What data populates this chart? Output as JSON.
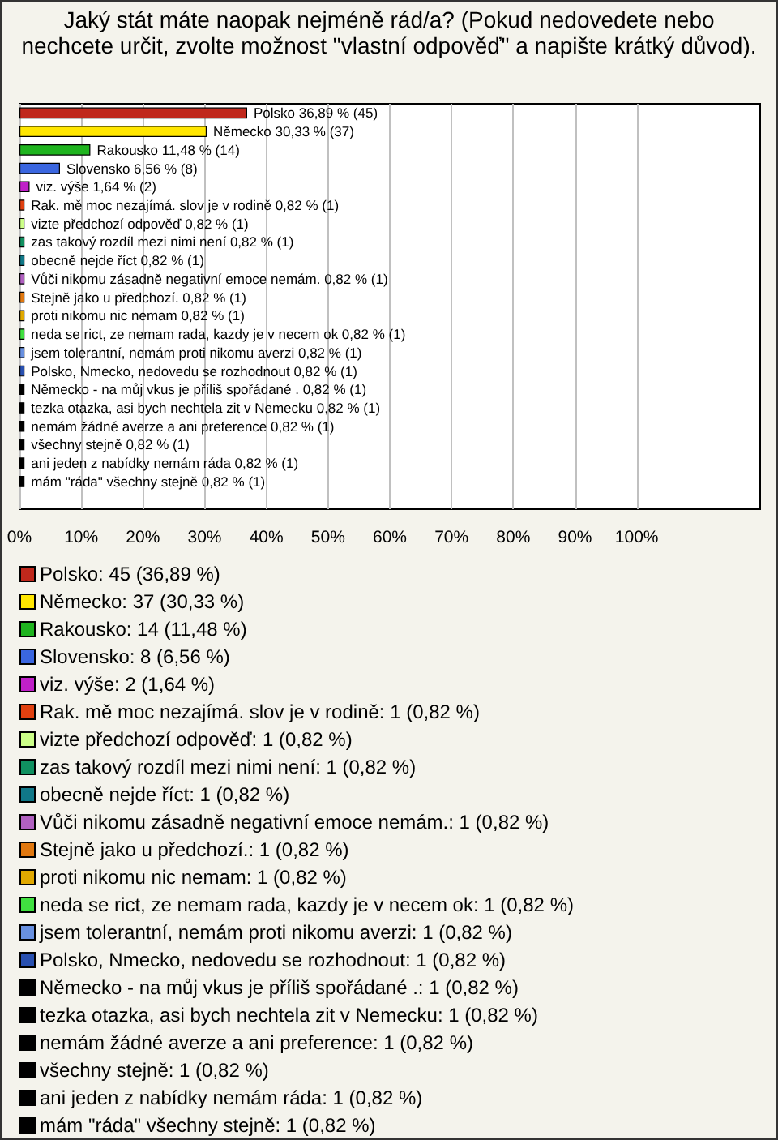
{
  "chart_data": {
    "type": "bar",
    "orientation": "horizontal",
    "stacked": true,
    "title": "Jaký stát máte naopak nejméně rád/a? (Pokud nedovedete nebo nechcete určit, zvolte možnost \"vlastní odpověď\" a napište krátký důvod).",
    "categories": [
      null,
      null,
      null,
      null,
      null,
      null,
      null,
      null,
      null,
      null,
      null,
      null,
      null,
      null,
      null,
      null,
      null,
      null,
      null,
      null,
      null,
      null
    ],
    "xlim": [
      0,
      120
    ],
    "xticks": [
      {
        "value": 0,
        "label": "0%"
      },
      {
        "value": 10,
        "label": "10%"
      },
      {
        "value": 20,
        "label": "20%"
      },
      {
        "value": 30,
        "label": "30%"
      },
      {
        "value": 40,
        "label": "40%"
      },
      {
        "value": 50,
        "label": "50%"
      },
      {
        "value": 60,
        "label": "60%"
      },
      {
        "value": 70,
        "label": "70%"
      },
      {
        "value": 80,
        "label": "80%"
      },
      {
        "value": 90,
        "label": "90%"
      },
      {
        "value": 100,
        "label": "100%"
      }
    ],
    "grid": "x",
    "legend": "bottom",
    "series": [
      {
        "name": "Polsko: 45 (36,89 %)",
        "color": "#c0281c",
        "values": [
          36.89,
          null,
          null,
          null,
          null,
          null,
          null,
          null,
          null,
          null,
          null,
          null,
          null,
          null,
          null,
          null,
          null,
          null,
          null,
          null,
          null,
          null
        ],
        "value_labels": [
          "Polsko 36,89 % (45)",
          null,
          null,
          null,
          null,
          null,
          null,
          null,
          null,
          null,
          null,
          null,
          null,
          null,
          null,
          null,
          null,
          null,
          null,
          null,
          null,
          null
        ]
      },
      {
        "name": "Německo: 37 (30,33 %)",
        "color": "#ffe600",
        "values": [
          null,
          30.33,
          null,
          null,
          null,
          null,
          null,
          null,
          null,
          null,
          null,
          null,
          null,
          null,
          null,
          null,
          null,
          null,
          null,
          null,
          null,
          null
        ],
        "value_labels": [
          null,
          "Německo 30,33 % (37)",
          null,
          null,
          null,
          null,
          null,
          null,
          null,
          null,
          null,
          null,
          null,
          null,
          null,
          null,
          null,
          null,
          null,
          null,
          null,
          null
        ]
      },
      {
        "name": "Rakousko: 14 (11,48 %)",
        "color": "#1fb41f",
        "values": [
          null,
          null,
          11.48,
          null,
          null,
          null,
          null,
          null,
          null,
          null,
          null,
          null,
          null,
          null,
          null,
          null,
          null,
          null,
          null,
          null,
          null,
          null
        ],
        "value_labels": [
          null,
          null,
          "Rakousko 11,48 % (14)",
          null,
          null,
          null,
          null,
          null,
          null,
          null,
          null,
          null,
          null,
          null,
          null,
          null,
          null,
          null,
          null,
          null,
          null,
          null
        ]
      },
      {
        "name": "Slovensko: 8 (6,56 %)",
        "color": "#3a66e0",
        "values": [
          null,
          null,
          null,
          6.56,
          null,
          null,
          null,
          null,
          null,
          null,
          null,
          null,
          null,
          null,
          null,
          null,
          null,
          null,
          null,
          null,
          null,
          null
        ],
        "value_labels": [
          null,
          null,
          null,
          "Slovensko 6,56 % (8)",
          null,
          null,
          null,
          null,
          null,
          null,
          null,
          null,
          null,
          null,
          null,
          null,
          null,
          null,
          null,
          null,
          null,
          null
        ]
      },
      {
        "name": "viz. výše: 2 (1,64 %)",
        "color": "#c020c8",
        "values": [
          null,
          null,
          null,
          null,
          1.64,
          null,
          null,
          null,
          null,
          null,
          null,
          null,
          null,
          null,
          null,
          null,
          null,
          null,
          null,
          null,
          null,
          null
        ],
        "value_labels": [
          null,
          null,
          null,
          null,
          "viz. výše 1,64 % (2)",
          null,
          null,
          null,
          null,
          null,
          null,
          null,
          null,
          null,
          null,
          null,
          null,
          null,
          null,
          null,
          null,
          null
        ]
      },
      {
        "name": "Rak. mě moc nezajímá. slov je v rodině: 1 (0,82 %)",
        "color": "#e04010",
        "values": [
          null,
          null,
          null,
          null,
          null,
          0.82,
          null,
          null,
          null,
          null,
          null,
          null,
          null,
          null,
          null,
          null,
          null,
          null,
          null,
          null,
          null,
          null
        ],
        "value_labels": [
          null,
          null,
          null,
          null,
          null,
          "Rak. mě moc nezajímá. slov je v rodině 0,82 % (1)",
          null,
          null,
          null,
          null,
          null,
          null,
          null,
          null,
          null,
          null,
          null,
          null,
          null,
          null,
          null,
          null
        ]
      },
      {
        "name": "vizte předchozí odpověď: 1 (0,82 %)",
        "color": "#ccff88",
        "values": [
          null,
          null,
          null,
          null,
          null,
          null,
          0.82,
          null,
          null,
          null,
          null,
          null,
          null,
          null,
          null,
          null,
          null,
          null,
          null,
          null,
          null,
          null
        ],
        "value_labels": [
          null,
          null,
          null,
          null,
          null,
          null,
          "vizte předchozí odpověď 0,82 % (1)",
          null,
          null,
          null,
          null,
          null,
          null,
          null,
          null,
          null,
          null,
          null,
          null,
          null,
          null,
          null
        ]
      },
      {
        "name": "zas takový rozdíl mezi nimi není: 1 (0,82 %)",
        "color": "#109060",
        "values": [
          null,
          null,
          null,
          null,
          null,
          null,
          null,
          0.82,
          null,
          null,
          null,
          null,
          null,
          null,
          null,
          null,
          null,
          null,
          null,
          null,
          null,
          null
        ],
        "value_labels": [
          null,
          null,
          null,
          null,
          null,
          null,
          null,
          "zas takový rozdíl mezi nimi není 0,82 % (1)",
          null,
          null,
          null,
          null,
          null,
          null,
          null,
          null,
          null,
          null,
          null,
          null,
          null,
          null
        ]
      },
      {
        "name": "obecně nejde říct: 1 (0,82 %)",
        "color": "#107888",
        "values": [
          null,
          null,
          null,
          null,
          null,
          null,
          null,
          null,
          0.82,
          null,
          null,
          null,
          null,
          null,
          null,
          null,
          null,
          null,
          null,
          null,
          null,
          null
        ],
        "value_labels": [
          null,
          null,
          null,
          null,
          null,
          null,
          null,
          null,
          "obecně nejde říct 0,82 % (1)",
          null,
          null,
          null,
          null,
          null,
          null,
          null,
          null,
          null,
          null,
          null,
          null,
          null
        ]
      },
      {
        "name": "Vůči nikomu zásadně negativní emoce nemám.: 1 (0,82 %)",
        "color": "#b060c0",
        "values": [
          null,
          null,
          null,
          null,
          null,
          null,
          null,
          null,
          null,
          0.82,
          null,
          null,
          null,
          null,
          null,
          null,
          null,
          null,
          null,
          null,
          null,
          null
        ],
        "value_labels": [
          null,
          null,
          null,
          null,
          null,
          null,
          null,
          null,
          null,
          "Vůči nikomu zásadně negativní emoce nemám. 0,82 % (1)",
          null,
          null,
          null,
          null,
          null,
          null,
          null,
          null,
          null,
          null,
          null,
          null
        ]
      },
      {
        "name": "Stejně jako u předchozí.: 1 (0,82 %)",
        "color": "#e07810",
        "values": [
          null,
          null,
          null,
          null,
          null,
          null,
          null,
          null,
          null,
          null,
          0.82,
          null,
          null,
          null,
          null,
          null,
          null,
          null,
          null,
          null,
          null,
          null
        ],
        "value_labels": [
          null,
          null,
          null,
          null,
          null,
          null,
          null,
          null,
          null,
          null,
          "Stejně jako u předchozí. 0,82 % (1)",
          null,
          null,
          null,
          null,
          null,
          null,
          null,
          null,
          null,
          null,
          null
        ]
      },
      {
        "name": "proti nikomu nic nemam: 1 (0,82 %)",
        "color": "#e0a800",
        "values": [
          null,
          null,
          null,
          null,
          null,
          null,
          null,
          null,
          null,
          null,
          null,
          0.82,
          null,
          null,
          null,
          null,
          null,
          null,
          null,
          null,
          null,
          null
        ],
        "value_labels": [
          null,
          null,
          null,
          null,
          null,
          null,
          null,
          null,
          null,
          null,
          null,
          "proti nikomu nic nemam 0,82 % (1)",
          null,
          null,
          null,
          null,
          null,
          null,
          null,
          null,
          null,
          null
        ]
      },
      {
        "name": "neda se rict, ze nemam rada, kazdy je v necem ok: 1 (0,82 %)",
        "color": "#40e040",
        "values": [
          null,
          null,
          null,
          null,
          null,
          null,
          null,
          null,
          null,
          null,
          null,
          null,
          0.82,
          null,
          null,
          null,
          null,
          null,
          null,
          null,
          null,
          null
        ],
        "value_labels": [
          null,
          null,
          null,
          null,
          null,
          null,
          null,
          null,
          null,
          null,
          null,
          null,
          "neda se rict, ze nemam rada, kazdy je v necem ok 0,82 % (1)",
          null,
          null,
          null,
          null,
          null,
          null,
          null,
          null,
          null
        ]
      },
      {
        "name": "jsem tolerantní, nemám proti nikomu averzi: 1 (0,82 %)",
        "color": "#6890e0",
        "values": [
          null,
          null,
          null,
          null,
          null,
          null,
          null,
          null,
          null,
          null,
          null,
          null,
          null,
          0.82,
          null,
          null,
          null,
          null,
          null,
          null,
          null,
          null
        ],
        "value_labels": [
          null,
          null,
          null,
          null,
          null,
          null,
          null,
          null,
          null,
          null,
          null,
          null,
          null,
          "jsem tolerantní, nemám proti nikomu averzi 0,82 % (1)",
          null,
          null,
          null,
          null,
          null,
          null,
          null,
          null
        ]
      },
      {
        "name": "Polsko, Nmecko, nedovedu se rozhodnout: 1 (0,82 %)",
        "color": "#2850b0",
        "values": [
          null,
          null,
          null,
          null,
          null,
          null,
          null,
          null,
          null,
          null,
          null,
          null,
          null,
          null,
          0.82,
          null,
          null,
          null,
          null,
          null,
          null,
          null
        ],
        "value_labels": [
          null,
          null,
          null,
          null,
          null,
          null,
          null,
          null,
          null,
          null,
          null,
          null,
          null,
          null,
          "Polsko, Nmecko, nedovedu se rozhodnout 0,82 % (1)",
          null,
          null,
          null,
          null,
          null,
          null,
          null
        ]
      },
      {
        "name": "Německo - na můj vkus je příliš spořádané .: 1 (0,82 %)",
        "color": "#000000",
        "values": [
          null,
          null,
          null,
          null,
          null,
          null,
          null,
          null,
          null,
          null,
          null,
          null,
          null,
          null,
          null,
          0.82,
          null,
          null,
          null,
          null,
          null,
          null
        ],
        "value_labels": [
          null,
          null,
          null,
          null,
          null,
          null,
          null,
          null,
          null,
          null,
          null,
          null,
          null,
          null,
          null,
          "Německo - na můj vkus je příliš spořádané . 0,82 % (1)",
          null,
          null,
          null,
          null,
          null,
          null
        ]
      },
      {
        "name": "tezka otazka, asi bych nechtela zit v Nemecku: 1 (0,82 %)",
        "color": "#000000",
        "values": [
          null,
          null,
          null,
          null,
          null,
          null,
          null,
          null,
          null,
          null,
          null,
          null,
          null,
          null,
          null,
          null,
          0.82,
          null,
          null,
          null,
          null,
          null
        ],
        "value_labels": [
          null,
          null,
          null,
          null,
          null,
          null,
          null,
          null,
          null,
          null,
          null,
          null,
          null,
          null,
          null,
          null,
          "tezka otazka, asi bych nechtela zit v Nemecku 0,82 % (1)",
          null,
          null,
          null,
          null,
          null
        ]
      },
      {
        "name": "nemám žádné averze a ani preference: 1 (0,82 %)",
        "color": "#000000",
        "values": [
          null,
          null,
          null,
          null,
          null,
          null,
          null,
          null,
          null,
          null,
          null,
          null,
          null,
          null,
          null,
          null,
          null,
          0.82,
          null,
          null,
          null,
          null
        ],
        "value_labels": [
          null,
          null,
          null,
          null,
          null,
          null,
          null,
          null,
          null,
          null,
          null,
          null,
          null,
          null,
          null,
          null,
          null,
          "nemám žádné averze a ani preference 0,82 % (1)",
          null,
          null,
          null,
          null
        ]
      },
      {
        "name": "všechny stejně: 1 (0,82 %)",
        "color": "#000000",
        "values": [
          null,
          null,
          null,
          null,
          null,
          null,
          null,
          null,
          null,
          null,
          null,
          null,
          null,
          null,
          null,
          null,
          null,
          null,
          0.82,
          null,
          null,
          null
        ],
        "value_labels": [
          null,
          null,
          null,
          null,
          null,
          null,
          null,
          null,
          null,
          null,
          null,
          null,
          null,
          null,
          null,
          null,
          null,
          null,
          "všechny stejně 0,82 % (1)",
          null,
          null,
          null
        ]
      },
      {
        "name": "ani jeden z nabídky nemám ráda: 1 (0,82 %)",
        "color": "#000000",
        "values": [
          null,
          null,
          null,
          null,
          null,
          null,
          null,
          null,
          null,
          null,
          null,
          null,
          null,
          null,
          null,
          null,
          null,
          null,
          null,
          0.82,
          null,
          null
        ],
        "value_labels": [
          null,
          null,
          null,
          null,
          null,
          null,
          null,
          null,
          null,
          null,
          null,
          null,
          null,
          null,
          null,
          null,
          null,
          null,
          null,
          "ani jeden z nabídky nemám ráda 0,82 % (1)",
          null,
          null
        ]
      },
      {
        "name": "mám \"ráda\" všechny stejně: 1 (0,82 %)",
        "color": "#000000",
        "values": [
          null,
          null,
          null,
          null,
          null,
          null,
          null,
          null,
          null,
          null,
          null,
          null,
          null,
          null,
          null,
          null,
          null,
          null,
          null,
          null,
          0.82,
          null
        ],
        "value_labels": [
          null,
          null,
          null,
          null,
          null,
          null,
          null,
          null,
          null,
          null,
          null,
          null,
          null,
          null,
          null,
          null,
          null,
          null,
          null,
          null,
          "mám \"ráda\" všechny stejně 0,82 % (1)",
          null
        ]
      }
    ]
  }
}
